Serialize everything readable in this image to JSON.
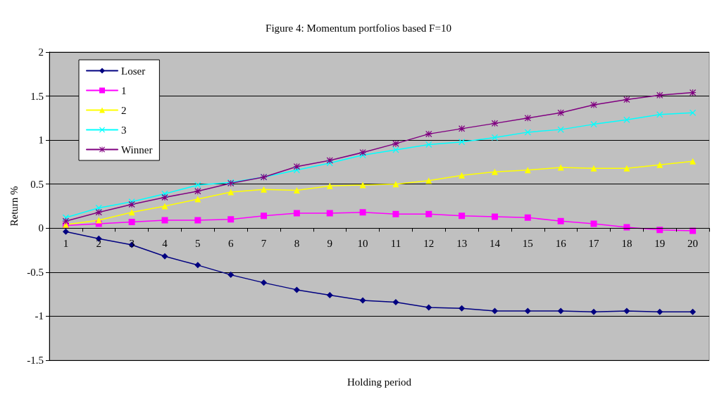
{
  "chart_data": {
    "type": "line",
    "title": "Figure 4: Momentum portfolios based F=10",
    "xlabel": "Holding period",
    "ylabel": "Return %",
    "categories": [
      "1",
      "2",
      "3",
      "4",
      "5",
      "6",
      "7",
      "8",
      "9",
      "10",
      "11",
      "12",
      "13",
      "14",
      "15",
      "16",
      "17",
      "18",
      "19",
      "20"
    ],
    "series": [
      {
        "name": "Loser",
        "color": "#000080",
        "marker": "diamond",
        "values": [
          -0.04,
          -0.12,
          -0.19,
          -0.32,
          -0.42,
          -0.53,
          -0.62,
          -0.7,
          -0.76,
          -0.82,
          -0.84,
          -0.9,
          -0.91,
          -0.94,
          -0.94,
          -0.94,
          -0.95,
          -0.94,
          -0.95,
          -0.95
        ]
      },
      {
        "name": "1",
        "color": "#ff00ff",
        "marker": "square",
        "values": [
          0.03,
          0.05,
          0.07,
          0.09,
          0.09,
          0.1,
          0.14,
          0.17,
          0.17,
          0.18,
          0.16,
          0.16,
          0.14,
          0.13,
          0.12,
          0.08,
          0.05,
          0.01,
          -0.02,
          -0.03
        ]
      },
      {
        "name": "2",
        "color": "#ffff00",
        "marker": "triangle",
        "values": [
          0.04,
          0.09,
          0.18,
          0.25,
          0.33,
          0.41,
          0.44,
          0.43,
          0.48,
          0.49,
          0.5,
          0.54,
          0.6,
          0.64,
          0.66,
          0.69,
          0.68,
          0.68,
          0.72,
          0.76
        ]
      },
      {
        "name": "3",
        "color": "#00ffff",
        "marker": "cross",
        "values": [
          0.12,
          0.23,
          0.3,
          0.39,
          0.49,
          0.52,
          0.58,
          0.66,
          0.74,
          0.83,
          0.89,
          0.95,
          0.98,
          1.03,
          1.09,
          1.12,
          1.18,
          1.23,
          1.29,
          1.31
        ]
      },
      {
        "name": "Winner",
        "color": "#800080",
        "marker": "star",
        "values": [
          0.08,
          0.18,
          0.27,
          0.35,
          0.42,
          0.51,
          0.58,
          0.7,
          0.77,
          0.86,
          0.96,
          1.07,
          1.13,
          1.19,
          1.25,
          1.31,
          1.4,
          1.46,
          1.51,
          1.54
        ]
      }
    ],
    "ylim": [
      -1.5,
      2
    ],
    "yticks": [
      -1.5,
      -1,
      -0.5,
      0,
      0.5,
      1,
      1.5,
      2
    ],
    "grid": "y",
    "legend": "top left",
    "line_style": "solid"
  }
}
